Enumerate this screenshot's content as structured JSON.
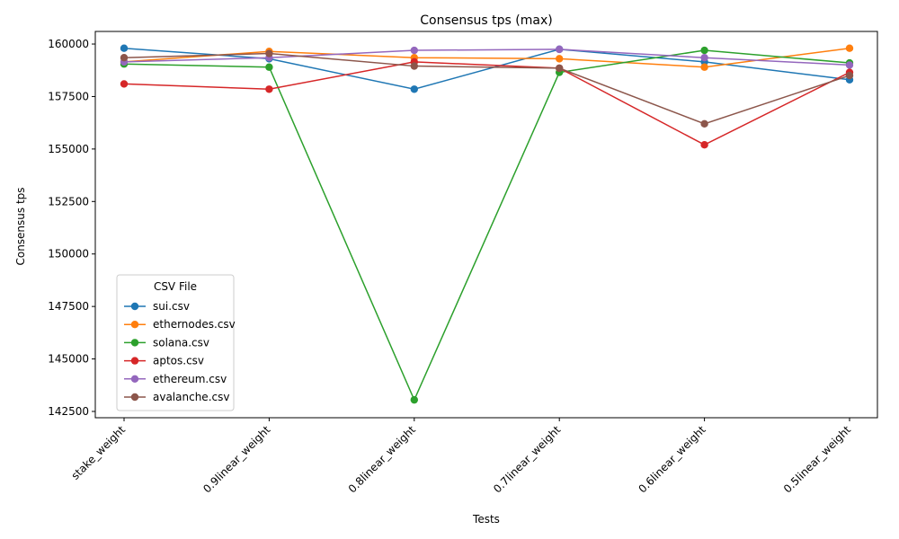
{
  "chart_data": {
    "type": "line",
    "title": "Consensus tps (max)",
    "xlabel": "Tests",
    "ylabel": "Consensus tps",
    "categories": [
      "stake_weight",
      "0.9linear_weight",
      "0.8linear_weight",
      "0.7linear_weight",
      "0.6linear_weight",
      "0.5linear_weight"
    ],
    "ylim": [
      142200,
      160600
    ],
    "yticks": [
      142500,
      145000,
      147500,
      150000,
      152500,
      155000,
      157500,
      160000
    ],
    "ytick_labels": [
      "142500",
      "145000",
      "147500",
      "150000",
      "152500",
      "155000",
      "157500",
      "160000"
    ],
    "grid": false,
    "legend": {
      "title": "CSV File",
      "placement": "lower-left"
    },
    "series": [
      {
        "name": "sui.csv",
        "color": "#1f77b4",
        "values": [
          159800,
          159300,
          157850,
          159750,
          159150,
          158300
        ]
      },
      {
        "name": "ethernodes.csv",
        "color": "#ff7f0e",
        "values": [
          159150,
          159650,
          159350,
          159300,
          158900,
          159800
        ]
      },
      {
        "name": "solana.csv",
        "color": "#2ca02c",
        "values": [
          159050,
          158900,
          143050,
          158650,
          159700,
          159100
        ]
      },
      {
        "name": "aptos.csv",
        "color": "#d62728",
        "values": [
          158100,
          157850,
          159150,
          158850,
          155200,
          158650
        ]
      },
      {
        "name": "ethereum.csv",
        "color": "#9467bd",
        "values": [
          159150,
          159350,
          159700,
          159750,
          159350,
          159000
        ]
      },
      {
        "name": "avalanche.csv",
        "color": "#8c564b",
        "values": [
          159350,
          159550,
          158950,
          158850,
          156200,
          158500
        ]
      }
    ]
  }
}
